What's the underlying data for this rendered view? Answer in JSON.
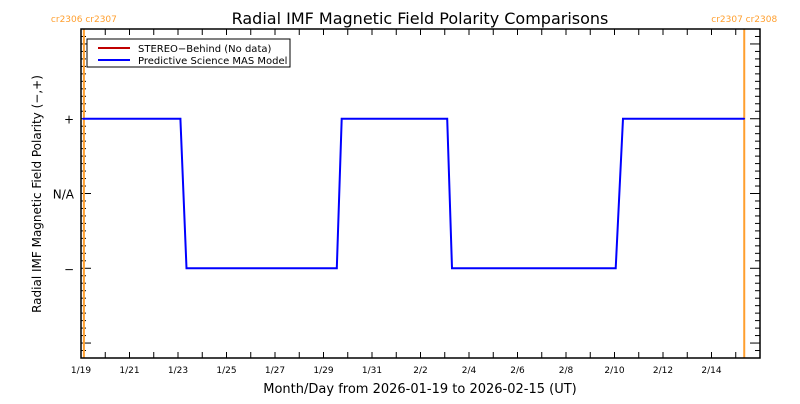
{
  "chart_data": {
    "type": "line",
    "title": "Radial IMF Magnetic Field Polarity Comparisons",
    "xlabel": "Month/Day from 2026-01-19 to 2026-02-15 (UT)",
    "ylabel": "Radial IMF Magnetic Field Polarity (−,+)",
    "xlim_days": [
      0,
      28
    ],
    "ylim": [
      -2.2,
      2.2
    ],
    "x_tick_labels": [
      "1/19",
      "1/21",
      "1/23",
      "1/25",
      "1/27",
      "1/29",
      "1/31",
      "2/2",
      "2/4",
      "2/6",
      "2/8",
      "2/10",
      "2/12",
      "2/14"
    ],
    "x_tick_label_days": [
      0,
      2,
      4,
      6,
      8,
      10,
      12,
      14,
      16,
      18,
      20,
      22,
      24,
      26
    ],
    "y_ticks": [
      {
        "value": 1,
        "label": "+"
      },
      {
        "value": 0,
        "label": "N/A"
      },
      {
        "value": -1,
        "label": "−"
      }
    ],
    "legend": {
      "placement": "top-left",
      "entries": [
        {
          "name": "STEREO−Behind (No data)",
          "color": "#c00000"
        },
        {
          "name": "Predictive Science MAS Model",
          "color": "#0000ff"
        }
      ]
    },
    "series": [
      {
        "name": "Predictive Science MAS Model",
        "color": "#0000ff",
        "x_days": [
          0.08,
          4.1,
          4.35,
          10.55,
          10.75,
          15.1,
          15.3,
          22.05,
          22.35,
          27.35
        ],
        "y": [
          1,
          1,
          -1,
          -1,
          1,
          1,
          -1,
          -1,
          1,
          1
        ]
      }
    ],
    "carrington_markers": [
      {
        "day": 0.12,
        "label": "cr2306 cr2307",
        "color": "#ff9f2f"
      },
      {
        "day": 27.35,
        "label": "cr2307 cr2308",
        "color": "#ff9f2f"
      }
    ]
  }
}
